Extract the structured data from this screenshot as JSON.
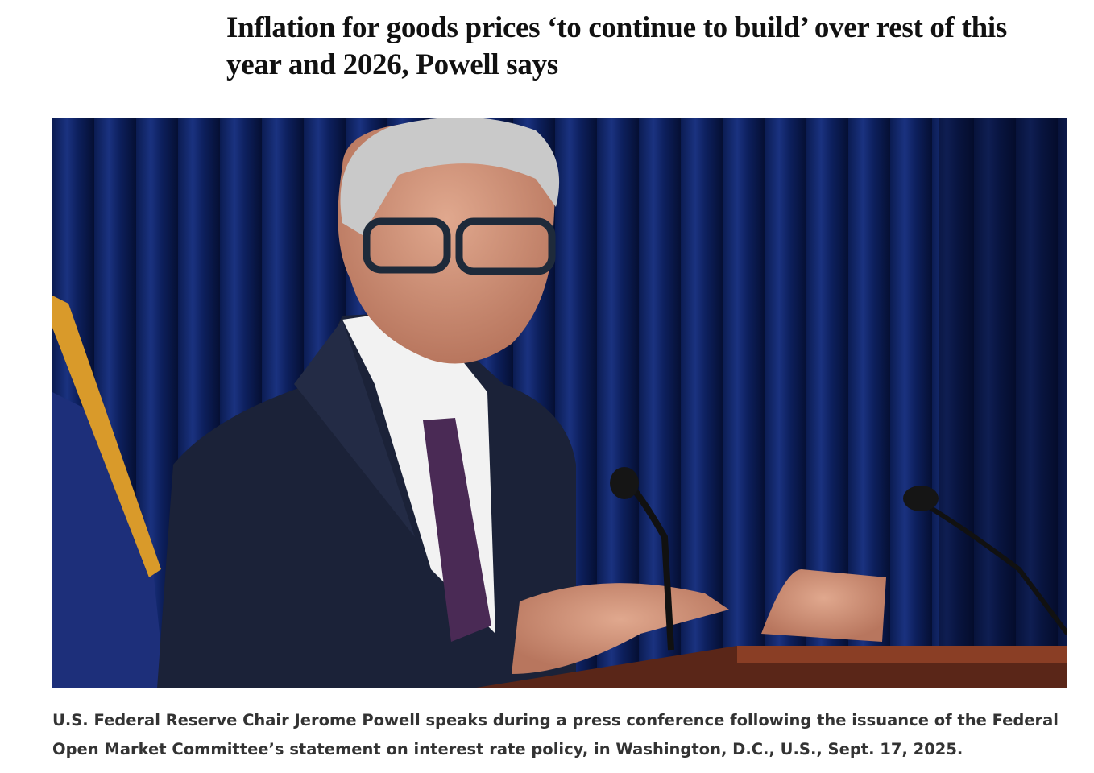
{
  "article": {
    "headline": "Inflation for goods prices ‘to continue to build’ over rest of this year and 2026, Powell says",
    "image_caption": "U.S. Federal Reserve Chair Jerome Powell speaks during a press conference following the issuance of the Federal Open Market Committee’s statement on interest rate policy, in Washington, D.C., U.S., Sept. 17, 2025."
  }
}
